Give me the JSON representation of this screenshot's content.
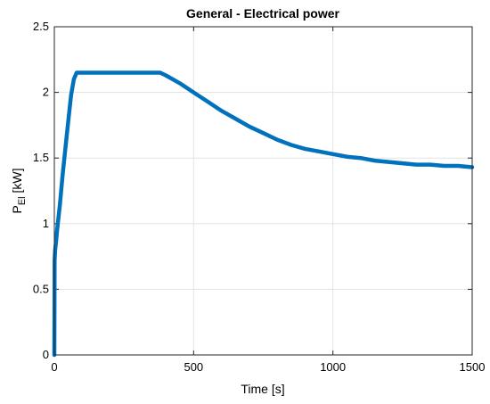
{
  "chart_data": {
    "type": "line",
    "title": "General - Electrical power",
    "xlabel": "Time [s]",
    "ylabel": "P",
    "ylabel_subscript": "El",
    "ylabel_unit": " [kW]",
    "xlim": [
      0,
      1500
    ],
    "ylim": [
      0,
      2.5
    ],
    "xticks": [
      0,
      500,
      1000,
      1500
    ],
    "yticks": [
      0,
      0.5,
      1,
      1.5,
      2,
      2.5
    ],
    "xtick_labels": [
      "0",
      "500",
      "1000",
      "1500"
    ],
    "ytick_labels": [
      "0",
      "0.5",
      "1",
      "1.5",
      "2",
      "2.5"
    ],
    "grid": true,
    "line_color": "#0072BD",
    "series": [
      {
        "x": [
          0,
          1,
          3,
          6,
          10,
          20,
          30,
          40,
          50,
          60,
          70,
          80,
          100,
          150,
          200,
          250,
          300,
          350,
          380,
          400,
          450,
          500,
          550,
          600,
          650,
          700,
          750,
          800,
          850,
          900,
          950,
          1000,
          1050,
          1100,
          1150,
          1200,
          1250,
          1300,
          1350,
          1400,
          1450,
          1500
        ],
        "y": [
          0,
          0.72,
          0.8,
          0.86,
          0.95,
          1.15,
          1.38,
          1.58,
          1.78,
          1.98,
          2.1,
          2.15,
          2.15,
          2.15,
          2.15,
          2.15,
          2.15,
          2.15,
          2.15,
          2.13,
          2.07,
          2.0,
          1.93,
          1.86,
          1.8,
          1.74,
          1.69,
          1.64,
          1.6,
          1.57,
          1.55,
          1.53,
          1.51,
          1.5,
          1.48,
          1.47,
          1.46,
          1.45,
          1.45,
          1.44,
          1.44,
          1.43
        ]
      }
    ]
  }
}
